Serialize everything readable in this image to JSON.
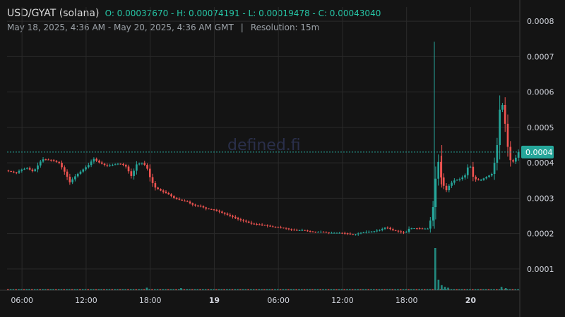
{
  "header": {
    "pair": "USD/GYAT (solana)",
    "ohlc": "O: 0.00037670 - H: 0.00074191 - L: 0.00019478 - C: 0.00043040",
    "range": "May 18, 2025, 4:36 AM - May 20, 2025, 4:36 AM GMT",
    "separator": "|",
    "resolution": "Resolution: 15m"
  },
  "watermark": "defined.fi",
  "colors": {
    "up": "#26a69a",
    "down": "#ef5350",
    "grid": "#2a2a2a",
    "bg": "#141414",
    "badge": "#26a69a"
  },
  "chart_data": {
    "type": "candlestick",
    "title": "USD/GYAT (solana)",
    "ylim": [
      0.0,
      0.00085
    ],
    "y_ticks": [
      {
        "value": 0.0001,
        "label": "0.0001"
      },
      {
        "value": 0.0002,
        "label": "0.0002"
      },
      {
        "value": 0.0003,
        "label": "0.0003"
      },
      {
        "value": 0.0004,
        "label": "0.0004"
      },
      {
        "value": 0.0005,
        "label": "0.0005"
      },
      {
        "value": 0.0006,
        "label": "0.0006"
      },
      {
        "value": 0.0007,
        "label": "0.0007"
      },
      {
        "value": 0.0008,
        "label": "0.0008"
      }
    ],
    "x_range_hours": [
      0,
      48
    ],
    "x_ticks": [
      {
        "hour": 1.4,
        "label": "06:00",
        "bold": false
      },
      {
        "hour": 7.4,
        "label": "12:00",
        "bold": false
      },
      {
        "hour": 13.4,
        "label": "18:00",
        "bold": false
      },
      {
        "hour": 19.4,
        "label": "19",
        "bold": true
      },
      {
        "hour": 25.4,
        "label": "06:00",
        "bold": false
      },
      {
        "hour": 31.4,
        "label": "12:00",
        "bold": false
      },
      {
        "hour": 37.4,
        "label": "18:00",
        "bold": false
      },
      {
        "hour": 43.4,
        "label": "20",
        "bold": true
      }
    ],
    "current_price": {
      "value": 0.0004304,
      "label": "0.0004"
    },
    "price_points": [
      [
        0,
        0.000378
      ],
      [
        1.0,
        0.000372
      ],
      [
        1.4,
        0.00038
      ],
      [
        2.0,
        0.000385
      ],
      [
        2.6,
        0.000375
      ],
      [
        3.4,
        0.00041
      ],
      [
        4.2,
        0.000408
      ],
      [
        5.0,
        0.0004
      ],
      [
        5.6,
        0.00037
      ],
      [
        6.0,
        0.000345
      ],
      [
        6.6,
        0.000365
      ],
      [
        7.2,
        0.00038
      ],
      [
        7.8,
        0.000395
      ],
      [
        8.2,
        0.000412
      ],
      [
        8.8,
        0.0004
      ],
      [
        9.4,
        0.000392
      ],
      [
        10.0,
        0.000394
      ],
      [
        10.6,
        0.000398
      ],
      [
        11.2,
        0.000392
      ],
      [
        11.8,
        0.00036
      ],
      [
        12.2,
        0.000395
      ],
      [
        12.8,
        0.0004
      ],
      [
        13.2,
        0.000388
      ],
      [
        13.6,
        0.00035
      ],
      [
        14.0,
        0.00033
      ],
      [
        14.6,
        0.00032
      ],
      [
        15.2,
        0.000312
      ],
      [
        15.8,
        0.0003
      ],
      [
        16.4,
        0.000294
      ],
      [
        17.0,
        0.00029
      ],
      [
        17.6,
        0.00028
      ],
      [
        18.2,
        0.000278
      ],
      [
        18.8,
        0.00027
      ],
      [
        19.4,
        0.000268
      ],
      [
        20.0,
        0.000262
      ],
      [
        20.6,
        0.000255
      ],
      [
        21.2,
        0.000248
      ],
      [
        21.8,
        0.00024
      ],
      [
        22.4,
        0.000235
      ],
      [
        23.0,
        0.000228
      ],
      [
        23.6,
        0.000226
      ],
      [
        24.2,
        0.000224
      ],
      [
        24.8,
        0.00022
      ],
      [
        25.4,
        0.000218
      ],
      [
        26.0,
        0.000216
      ],
      [
        26.6,
        0.000212
      ],
      [
        27.2,
        0.000209
      ],
      [
        27.8,
        0.00021
      ],
      [
        28.4,
        0.000206
      ],
      [
        29.0,
        0.000205
      ],
      [
        29.6,
        0.000205
      ],
      [
        30.2,
        0.000202
      ],
      [
        30.8,
        0.000202
      ],
      [
        31.4,
        0.000202
      ],
      [
        32.0,
        0.0002
      ],
      [
        32.6,
        0.000197
      ],
      [
        33.2,
        0.000202
      ],
      [
        33.8,
        0.000205
      ],
      [
        34.4,
        0.000206
      ],
      [
        35.0,
        0.00021
      ],
      [
        35.6,
        0.000218
      ],
      [
        36.2,
        0.00021
      ],
      [
        36.8,
        0.000206
      ],
      [
        37.4,
        0.000202
      ],
      [
        37.8,
        0.000215
      ],
      [
        38.4,
        0.000215
      ],
      [
        39.0,
        0.000214
      ],
      [
        39.6,
        0.000214
      ],
      [
        40.1,
        0.00029
      ],
      [
        40.4,
        0.00042
      ],
      [
        40.8,
        0.00035
      ],
      [
        41.2,
        0.00032
      ],
      [
        41.6,
        0.00034
      ],
      [
        42.0,
        0.00035
      ],
      [
        42.6,
        0.000355
      ],
      [
        43.0,
        0.000365
      ],
      [
        43.4,
        0.0004
      ],
      [
        43.8,
        0.000355
      ],
      [
        44.4,
        0.00035
      ],
      [
        45.0,
        0.00036
      ],
      [
        45.6,
        0.00037
      ],
      [
        46.0,
        0.00045
      ],
      [
        46.3,
        0.00057
      ],
      [
        46.6,
        0.00056
      ],
      [
        46.9,
        0.00046
      ],
      [
        47.3,
        0.0004
      ],
      [
        47.6,
        0.000405
      ],
      [
        48.0,
        0.00043
      ]
    ],
    "spikes": [
      {
        "hour": 40.0,
        "high": 0.000742,
        "low": 0.000214,
        "open": 0.000214,
        "close": 0.00029
      },
      {
        "hour": 40.7,
        "high": 0.00045,
        "low": 0.00033,
        "open": 0.00042,
        "close": 0.00035
      }
    ],
    "volume": [
      {
        "hour": 40.0,
        "value": 1.0
      },
      {
        "hour": 40.3,
        "value": 0.25
      },
      {
        "hour": 40.6,
        "value": 0.12
      },
      {
        "hour": 40.9,
        "value": 0.08
      },
      {
        "hour": 41.2,
        "value": 0.06
      },
      {
        "hour": 46.2,
        "value": 0.08
      },
      {
        "hour": 46.6,
        "value": 0.05
      },
      {
        "hour": 13.0,
        "value": 0.06
      },
      {
        "hour": 16.2,
        "value": 0.05
      }
    ]
  }
}
